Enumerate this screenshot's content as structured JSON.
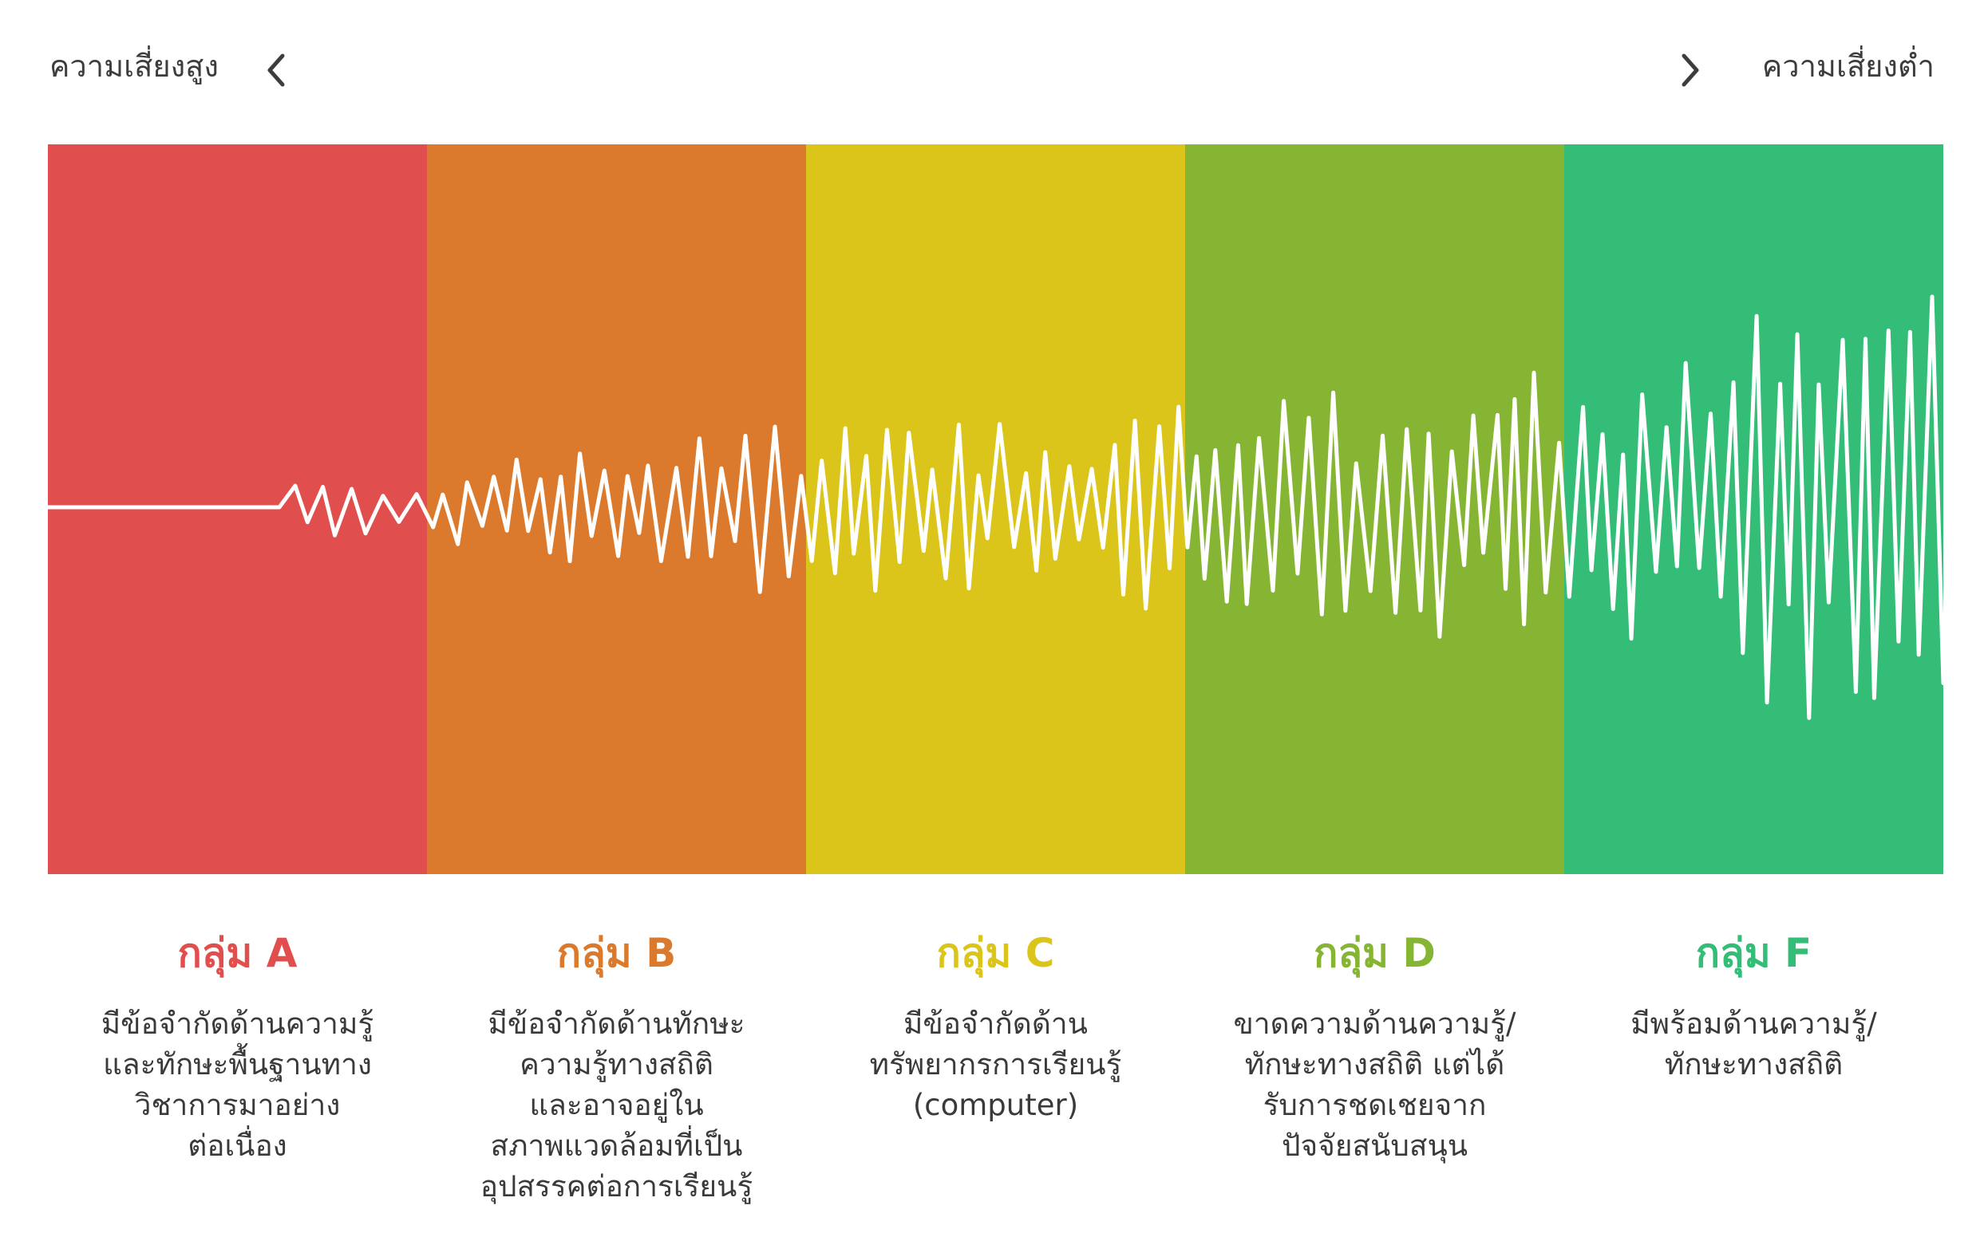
{
  "header": {
    "left_label": "ความเสี่ยงสูง",
    "right_label": "ความเสี่ยงต่ำ",
    "left_icon": "chevron-left-icon",
    "right_icon": "chevron-right-icon"
  },
  "colors": {
    "wave": "#ffffff",
    "text": "#3a3a3a"
  },
  "groups": [
    {
      "title": "กลุ่ม A",
      "color": "#e04f4d",
      "description": "มีข้อจำกัดด้านความรู้\nและทักษะพื้นฐานทาง\nวิชาการมาอย่าง\nต่อเนื่อง"
    },
    {
      "title": "กลุ่ม B",
      "color": "#db7a2c",
      "description": "มีข้อจำกัดด้านทักษะ\nความรู้ทางสถิติ\nและอาจอยู่ใน\nสภาพแวดล้อมที่เป็น\nอุปสรรคต่อการเรียนรู้"
    },
    {
      "title": "กลุ่ม C",
      "color": "#dbc51a",
      "description": "มีข้อจำกัดด้าน\nทรัพยากรการเรียนรู้\n(computer)"
    },
    {
      "title": "กลุ่ม D",
      "color": "#86b534",
      "description": "ขาดความด้านความรู้/\nทักษะทางสถิติ แต่ได้\nรับการชดเชยจาก\nปัจจัยสนับสนุน"
    },
    {
      "title": "กลุ่ม F",
      "color": "#33bd77",
      "description": "มีพร้อมด้านความรู้/\nทักษะทางสถิติ"
    }
  ]
}
